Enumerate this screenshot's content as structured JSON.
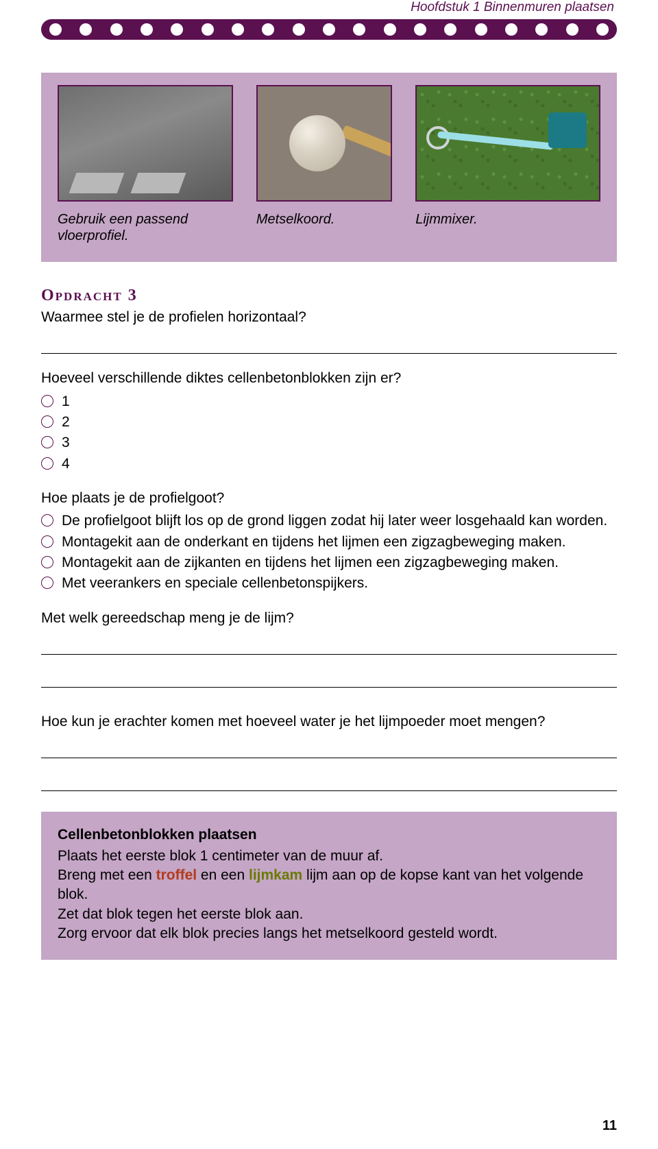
{
  "colors": {
    "brand": "#5b1050",
    "panel": "#c5a6c6",
    "keyword_a": "#b23a1a",
    "keyword_b": "#6a7a00",
    "text": "#000000",
    "page_bg": "#ffffff"
  },
  "header": {
    "chapter_label": "Hoofdstuk 1   Binnenmuren plaatsen",
    "dot_count": 19
  },
  "tools": {
    "items": [
      {
        "caption": "Gebruik een passend vloerprofiel.",
        "img_alt": "metalen vloerprofielen"
      },
      {
        "caption": "Metselkoord.",
        "img_alt": "bol metselkoord op stok"
      },
      {
        "caption": "Lijmmixer.",
        "img_alt": "lijmmixer op gras"
      }
    ]
  },
  "assignment": {
    "title": "Opdracht 3",
    "q1": "Waarmee stel je de profielen horizontaal?",
    "q2": {
      "text": "Hoeveel verschillende diktes cellenbetonblokken zijn er?",
      "options": [
        "1",
        "2",
        "3",
        "4"
      ]
    },
    "q3": {
      "text": "Hoe plaats je de profielgoot?",
      "options": [
        "De profielgoot blijft los op de grond liggen zodat hij later weer losgehaald kan worden.",
        "Montagekit aan de onderkant en tijdens het lijmen een zigzagbeweging maken.",
        "Montagekit aan de zijkanten en tijdens het lijmen een zigzagbeweging maken.",
        "Met veerankers en speciale cellenbetonspijkers."
      ]
    },
    "q4": "Met welk gereedschap meng je de lijm?",
    "q5": "Hoe kun je erachter komen met hoeveel water je het lijmpoeder moet mengen?"
  },
  "info": {
    "title": "Cellenbetonblokken plaatsen",
    "line1": "Plaats het eerste blok 1 centimeter van de muur af.",
    "line2_pre": "Breng met een ",
    "line2_kw1": "troffel",
    "line2_mid": " en een ",
    "line2_kw2": "lijmkam",
    "line2_post": " lijm aan op de kopse kant van het volgende blok.",
    "line3": "Zet dat blok tegen het eerste blok aan.",
    "line4": "Zorg ervoor dat elk blok precies langs het metselkoord gesteld wordt."
  },
  "page_number": "11"
}
